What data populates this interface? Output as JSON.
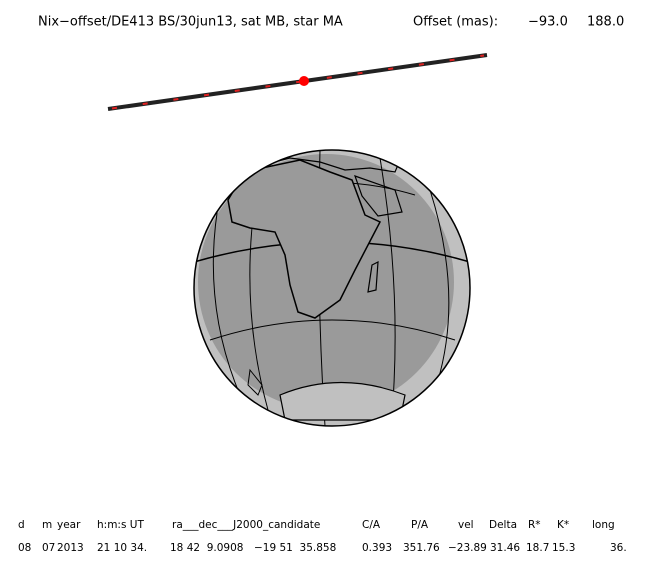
{
  "header": {
    "title": "Nix−offset/DE413 BS/30jun13, sat MB, star MA",
    "offset_label": "Offset (mas):",
    "offset_values": [
      "−93.0",
      "188.0"
    ]
  },
  "table": {
    "rows": [
      [
        "d",
        "m",
        "year",
        "h:m:s UT",
        "ra___dec___J2000_candidate",
        "C/A",
        "P/A",
        "vel",
        "Delta",
        "R*",
        "K*",
        "long"
      ],
      [
        "08",
        "07",
        "2013",
        "21 10 34.",
        "18 42  9.0908",
        "−19 51  35.858",
        "0.393",
        "351.76",
        "−23.89",
        "31.46",
        "18.7",
        "15.3",
        "36."
      ]
    ]
  }
}
